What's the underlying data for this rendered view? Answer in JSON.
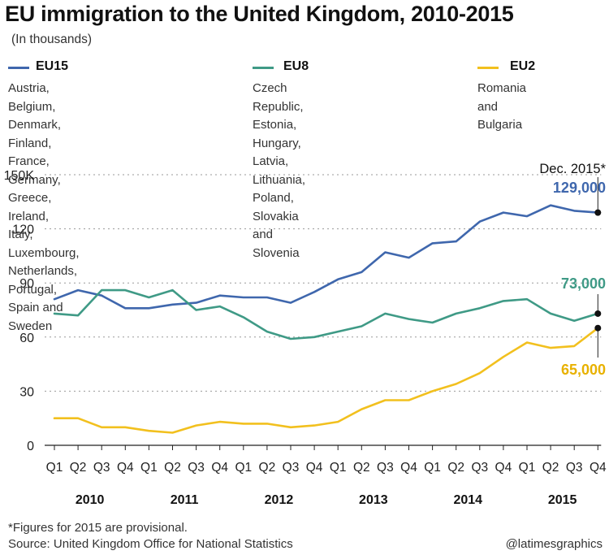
{
  "title": "EU immigration to the United Kingdom, 2010-2015",
  "subtitle": "(In thousands)",
  "legend": [
    {
      "name": "EU15",
      "color": "#3f67ad",
      "desc": "Austria, Belgium, Denmark, Finland,\nFrance, Germany, Greece, Ireland,\nItaly, Luxembourg, Netherlands,\nPortugal, Spain and Sweden"
    },
    {
      "name": "EU8",
      "color": "#3f9a86",
      "desc": "Czech Republic, Estonia,\nHungary, Latvia, Lithuania,\nPoland, Slovakia and Slovenia"
    },
    {
      "name": "EU2",
      "color": "#f2c01e",
      "desc": "Romania and\nBulgaria"
    }
  ],
  "annotations": {
    "dec_label": "Dec. 2015*",
    "eu15_value": "129,000",
    "eu8_value": "73,000",
    "eu2_value": "65,000"
  },
  "footer": {
    "note": "*Figures for 2015 are provisional.",
    "source": "Source: United Kingdom Office for National Statistics",
    "credit": "@latimesgraphics"
  },
  "chart_data": {
    "type": "line",
    "title": "EU immigration to the United Kingdom, 2010-2015",
    "subtitle": "(In thousands)",
    "x": [
      "Q1",
      "Q2",
      "Q3",
      "Q4",
      "Q1",
      "Q2",
      "Q3",
      "Q4",
      "Q1",
      "Q2",
      "Q3",
      "Q4",
      "Q1",
      "Q2",
      "Q3",
      "Q4",
      "Q1",
      "Q2",
      "Q3",
      "Q4",
      "Q1",
      "Q2",
      "Q3",
      "Q4"
    ],
    "years": [
      "2010",
      "2011",
      "2012",
      "2013",
      "2014",
      "2015"
    ],
    "y_ticks": [
      "0",
      "30",
      "60",
      "90",
      "120",
      "150K"
    ],
    "ylim": [
      0,
      150
    ],
    "grid": true,
    "series": [
      {
        "name": "EU15",
        "color": "#3f67ad",
        "values": [
          81,
          86,
          83,
          76,
          76,
          78,
          79,
          83,
          82,
          82,
          79,
          85,
          92,
          96,
          107,
          104,
          112,
          113,
          124,
          129,
          127,
          133,
          130,
          129
        ]
      },
      {
        "name": "EU8",
        "color": "#3f9a86",
        "values": [
          73,
          72,
          86,
          86,
          82,
          86,
          75,
          77,
          71,
          63,
          59,
          60,
          63,
          66,
          73,
          70,
          68,
          73,
          76,
          80,
          81,
          73,
          69,
          73
        ]
      },
      {
        "name": "EU2",
        "color": "#f2c01e",
        "values": [
          15,
          15,
          10,
          10,
          8,
          7,
          11,
          13,
          12,
          12,
          10,
          11,
          13,
          20,
          25,
          25,
          30,
          34,
          40,
          49,
          57,
          54,
          55,
          65
        ]
      }
    ]
  }
}
